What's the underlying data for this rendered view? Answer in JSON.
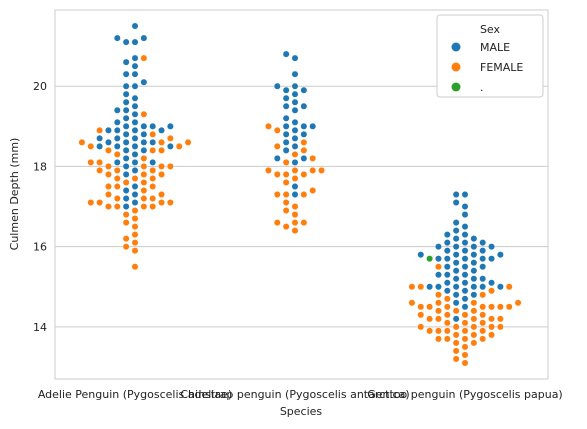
{
  "chart_data": {
    "type": "swarm",
    "title": "",
    "xlabel": "Species",
    "ylabel": "Culmen Depth (mm)",
    "categories": [
      "Adelie Penguin (Pygoscelis adeliae)",
      "Chinstrap penguin (Pygoscelis antarctica)",
      "Gentoo penguin (Pygoscelis papua)"
    ],
    "yticks": [
      "14",
      "16",
      "18",
      "20"
    ],
    "ylim": [
      12.7,
      21.9
    ],
    "grid": "horizontal",
    "legend": {
      "title": "Sex",
      "placement": "top-right",
      "entries": [
        "MALE",
        "FEMALE",
        "."
      ]
    },
    "colors": {
      "MALE": "#1f77b4",
      "FEMALE": "#ff7f0e",
      ".": "#2ca02c"
    },
    "series": [
      {
        "name": "MALE",
        "category_values": [
          [
            21.5,
            21.2,
            21.2,
            21.1,
            21.1,
            20.7,
            20.6,
            20.5,
            20.3,
            20.3,
            20.1,
            20.0,
            20.0,
            19.8,
            19.7,
            19.6,
            19.5,
            19.4,
            19.4,
            19.3,
            19.2,
            19.1,
            19.1,
            19.0,
            19.0,
            18.9,
            18.9,
            18.9,
            18.8,
            18.8,
            18.7,
            18.7,
            18.6,
            18.6,
            18.6,
            18.5,
            18.5,
            18.5,
            18.4,
            18.4,
            18.3,
            18.2,
            18.1,
            18.1,
            18.1,
            18.0,
            17.9,
            17.8,
            17.5,
            17.4,
            17.3,
            17.2,
            17.1,
            17.0,
            19.0,
            18.9,
            19.0,
            18.6,
            18.5,
            18.7
          ],
          [
            20.8,
            20.7,
            20.3,
            20.0,
            20.0,
            19.9,
            19.9,
            19.8,
            19.7,
            19.6,
            19.5,
            19.5,
            19.4,
            19.2,
            19.1,
            19.0,
            19.0,
            19.0,
            18.9,
            18.8,
            18.8,
            18.7,
            18.6,
            18.5,
            18.4,
            18.2,
            18.2,
            18.1,
            17.5,
            17.3
          ],
          [
            17.3,
            17.3,
            17.1,
            17.0,
            16.8,
            16.6,
            16.5,
            16.4,
            16.3,
            16.3,
            16.2,
            16.2,
            16.1,
            16.1,
            16.0,
            16.0,
            16.0,
            15.9,
            15.9,
            15.8,
            15.8,
            15.7,
            15.7,
            15.7,
            15.6,
            15.6,
            15.5,
            15.5,
            15.4,
            15.4,
            15.3,
            15.3,
            15.2,
            15.2,
            15.1,
            15.1,
            15.0,
            15.0,
            15.0,
            14.9,
            14.8,
            14.7,
            14.5,
            15.8,
            15.9,
            16.0,
            15.7,
            15.8,
            15.0,
            14.8,
            15.1,
            15.2,
            14.9,
            15.0,
            15.7,
            16.1,
            15.5,
            15.3,
            15.0,
            14.6,
            14.2
          ]
        ]
      },
      {
        "name": "FEMALE",
        "category_values": [
          [
            20.7,
            19.3,
            18.9,
            18.8,
            18.7,
            18.6,
            18.6,
            18.5,
            18.4,
            18.4,
            18.3,
            18.2,
            18.1,
            18.0,
            18.0,
            17.9,
            17.9,
            17.8,
            17.8,
            17.7,
            17.7,
            17.6,
            17.5,
            17.5,
            17.4,
            17.3,
            17.2,
            17.2,
            17.1,
            17.1,
            17.0,
            17.0,
            17.0,
            16.9,
            16.8,
            16.7,
            16.6,
            16.5,
            16.3,
            16.2,
            16.1,
            16.0,
            15.9,
            15.5,
            17.2,
            17.1,
            17.0,
            17.9,
            18.0,
            18.1,
            18.6,
            18.5,
            18.4,
            17.8,
            17.7,
            17.6,
            17.5,
            18.0,
            17.3,
            17.1
          ],
          [
            19.0,
            18.9,
            18.6,
            18.5,
            18.4,
            18.3,
            18.2,
            18.1,
            17.9,
            17.9,
            17.8,
            17.8,
            17.7,
            17.6,
            17.4,
            17.3,
            17.3,
            17.1,
            17.0,
            16.9,
            16.8,
            16.6,
            16.6,
            16.5,
            16.4,
            17.9,
            17.8,
            16.6,
            17.3,
            17.9
          ],
          [
            15.5,
            15.0,
            15.0,
            14.8,
            14.6,
            14.6,
            14.5,
            14.5,
            14.5,
            14.4,
            14.4,
            14.3,
            14.3,
            14.2,
            14.2,
            14.2,
            14.1,
            14.1,
            14.0,
            14.0,
            14.0,
            13.9,
            13.9,
            13.8,
            13.8,
            13.7,
            13.7,
            13.6,
            13.5,
            13.4,
            13.3,
            13.2,
            13.1,
            14.5,
            14.6,
            14.5,
            14.3,
            14.2,
            14.1,
            13.9,
            13.8,
            13.7,
            14.5,
            14.4,
            14.0,
            13.9,
            14.8,
            14.6,
            14.5,
            14.3,
            14.2,
            14.0,
            13.7,
            13.6,
            14.9,
            15.0,
            14.7,
            13.9
          ]
        ]
      },
      {
        "name": ".",
        "category_values": [
          [],
          [],
          [
            15.7
          ]
        ]
      }
    ]
  }
}
